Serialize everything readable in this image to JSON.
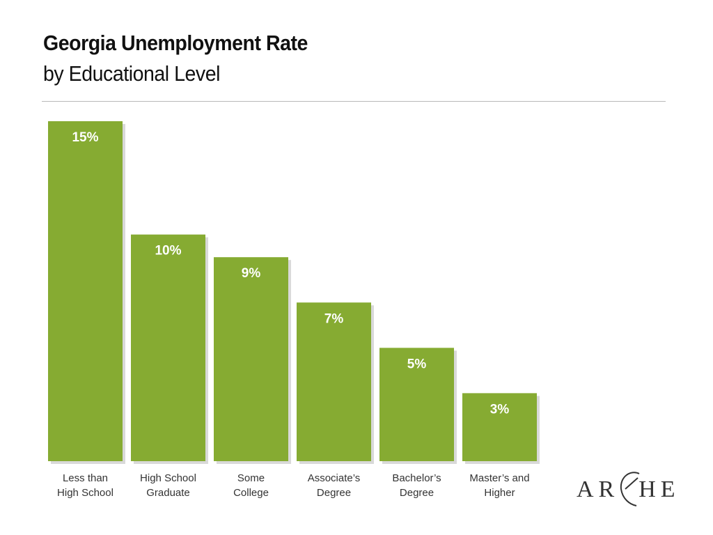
{
  "header": {
    "title": "Georgia Unemployment Rate",
    "subtitle": "by Educational Level"
  },
  "logo": {
    "text": "ARCHE"
  },
  "colors": {
    "bar": "#86ab32",
    "bar_shadow": "#d9d9d9",
    "label": "#333333"
  },
  "chart_data": {
    "type": "bar",
    "categories": [
      [
        "Less than",
        "High School"
      ],
      [
        "High School",
        "Graduate"
      ],
      [
        "Some",
        "College"
      ],
      [
        "Associate’s",
        "Degree"
      ],
      [
        "Bachelor’s",
        "Degree"
      ],
      [
        "Master’s and",
        "Higher"
      ]
    ],
    "values": [
      15,
      10,
      9,
      7,
      5,
      3
    ],
    "data_labels": [
      "15%",
      "10%",
      "9%",
      "7%",
      "5%",
      "3%"
    ],
    "title": "Georgia Unemployment Rate",
    "subtitle": "by Educational Level",
    "unit": "%",
    "ylim": [
      0,
      15
    ],
    "grid": false,
    "legend": "none"
  }
}
